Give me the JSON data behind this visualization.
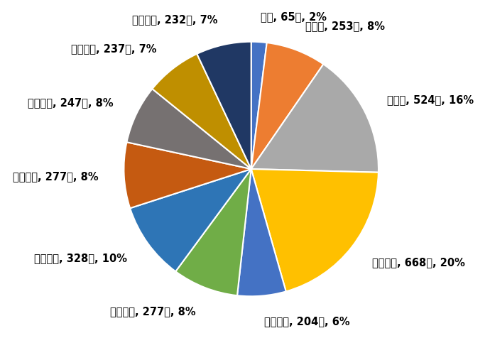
{
  "labels": [
    "０歳",
    "１歳～",
    "５歳～",
    "１０歳～",
    "２０歳～",
    "３０歳～",
    "４０歳～",
    "５０歳～",
    "６０歳～",
    "７０歳～",
    "８０歳～"
  ],
  "values": [
    65,
    253,
    524,
    668,
    204,
    277,
    328,
    277,
    247,
    237,
    232
  ],
  "percentages": [
    2,
    8,
    16,
    20,
    6,
    8,
    10,
    8,
    8,
    7,
    7
  ],
  "colors": [
    "#4472C4",
    "#ED7D31",
    "#A9A9A9",
    "#FFC000",
    "#4472C4",
    "#70AD47",
    "#2E75B6",
    "#C55A11",
    "#767171",
    "#BF8F00",
    "#203864"
  ],
  "background_color": "#FFFFFF",
  "label_fontsize": 10.5,
  "startangle": 90
}
